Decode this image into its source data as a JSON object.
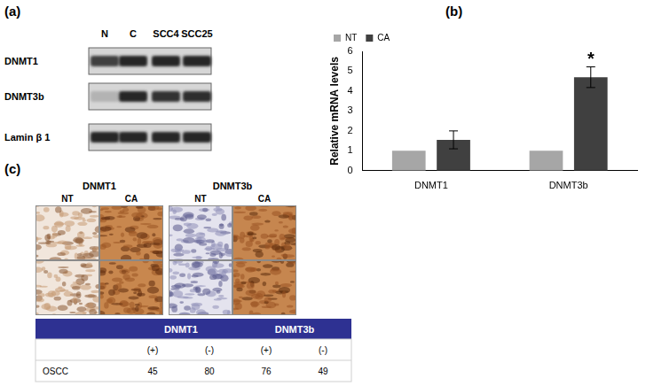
{
  "panel_a": {
    "label": "(a)",
    "lanes": [
      "N",
      "C",
      "SCC4",
      "SCC25"
    ],
    "rows": [
      {
        "name": "DNMT1",
        "band_intensity": [
          0.75,
          0.85,
          0.85,
          0.85
        ]
      },
      {
        "name": "DNMT3b",
        "band_intensity": [
          0.3,
          0.85,
          0.8,
          0.82
        ]
      },
      {
        "name": "Lamin β 1",
        "band_intensity": [
          0.85,
          0.85,
          0.85,
          0.85
        ]
      }
    ]
  },
  "chart_data": {
    "type": "bar",
    "title": "(b)",
    "y_label": "Relative mRNA levels",
    "categories": [
      "DNMT1",
      "DNMT3b"
    ],
    "series": [
      {
        "name": "NT",
        "color": "#a6a6a6",
        "values": [
          1,
          1
        ]
      },
      {
        "name": "CA",
        "color": "#404040",
        "values": [
          1.55,
          4.7
        ],
        "errors": [
          0.45,
          0.52
        ]
      }
    ],
    "annotations": [
      {
        "text": "*",
        "category": "DNMT3b",
        "series": "CA"
      }
    ],
    "ylim": [
      0,
      6
    ],
    "yticks": [
      0,
      1,
      2,
      3,
      4,
      5,
      6
    ],
    "grid": false,
    "legend": "top-left"
  },
  "panel_c": {
    "label": "(c)",
    "stains": [
      {
        "name": "DNMT1",
        "columns": [
          "NT",
          "CA"
        ]
      },
      {
        "name": "DNMT3b",
        "columns": [
          "NT",
          "CA"
        ]
      }
    ],
    "table": {
      "header": [
        "DNMT1",
        "DNMT3b"
      ],
      "subheader": [
        "(+)",
        "(-)",
        "(+)",
        "(-)"
      ],
      "rows": [
        {
          "label": "OSCC",
          "values": [
            45,
            80,
            76,
            49
          ]
        }
      ]
    }
  }
}
